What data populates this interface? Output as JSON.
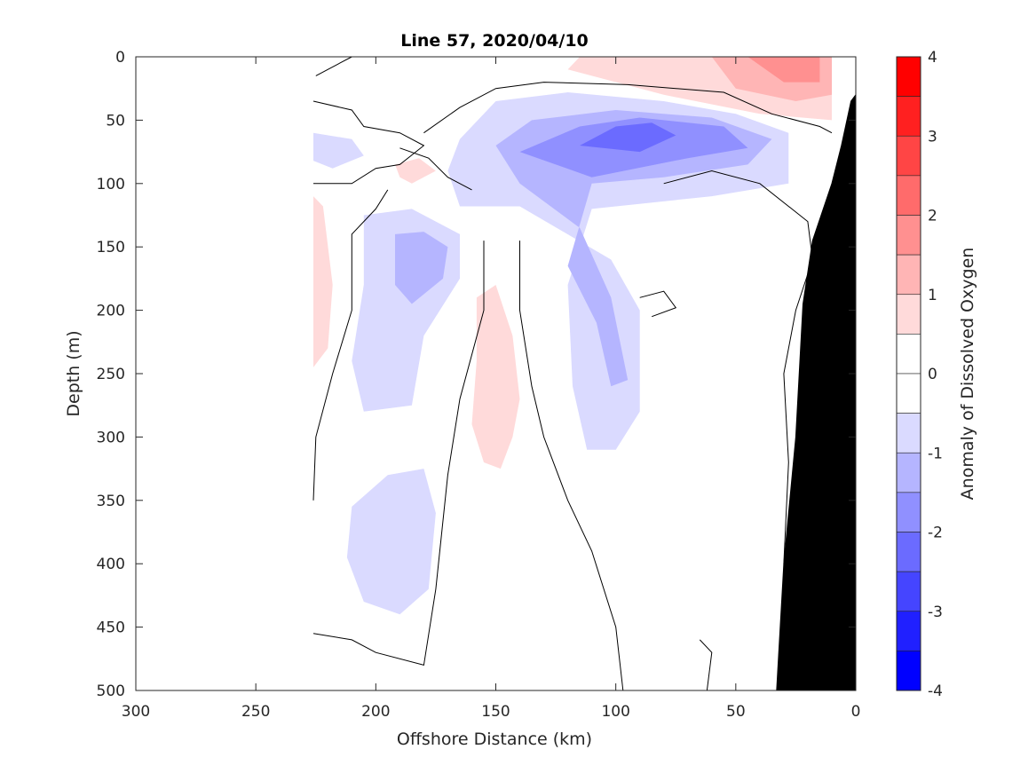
{
  "chart_data": {
    "type": "heatmap",
    "title": "Line 57, 2020/04/10",
    "xlabel": "Offshore Distance (km)",
    "ylabel": "Depth (m)",
    "colorbar_label": "Anomaly of Dissolved Oxygen",
    "xlim": [
      300,
      0
    ],
    "ylim": [
      500,
      0
    ],
    "x_reversed": true,
    "y_reversed": true,
    "x_ticks": [
      300,
      250,
      200,
      150,
      100,
      50,
      0
    ],
    "y_ticks": [
      0,
      50,
      100,
      150,
      200,
      250,
      300,
      350,
      400,
      450,
      500
    ],
    "colorbar_ticks": [
      4,
      3,
      2,
      1,
      0,
      -1,
      -2,
      -3,
      -4
    ],
    "colorbar_range": [
      -4,
      4
    ],
    "colorbar_levels": [
      {
        "from": 3.5,
        "to": 4.0,
        "color": "#ff0000"
      },
      {
        "from": 3.0,
        "to": 3.5,
        "color": "#ff2020"
      },
      {
        "from": 2.5,
        "to": 3.0,
        "color": "#ff4545"
      },
      {
        "from": 2.0,
        "to": 2.5,
        "color": "#ff6b6b"
      },
      {
        "from": 1.5,
        "to": 2.0,
        "color": "#ff9090"
      },
      {
        "from": 1.0,
        "to": 1.5,
        "color": "#ffb5b5"
      },
      {
        "from": 0.5,
        "to": 1.0,
        "color": "#ffdada"
      },
      {
        "from": 0.0,
        "to": 0.5,
        "color": "#ffffff"
      },
      {
        "from": -0.5,
        "to": 0.0,
        "color": "#ffffff"
      },
      {
        "from": -1.0,
        "to": -0.5,
        "color": "#dadaff"
      },
      {
        "from": -1.5,
        "to": -1.0,
        "color": "#b5b5ff"
      },
      {
        "from": -2.0,
        "to": -1.5,
        "color": "#9090ff"
      },
      {
        "from": -2.5,
        "to": -2.0,
        "color": "#6b6bff"
      },
      {
        "from": -3.0,
        "to": -2.5,
        "color": "#4545ff"
      },
      {
        "from": -3.5,
        "to": -3.0,
        "color": "#2020ff"
      },
      {
        "from": -4.0,
        "to": -3.5,
        "color": "#0000ff"
      }
    ],
    "grid": false,
    "colorbar_position": "right",
    "data_coverage_x_max": 226,
    "regions": [
      {
        "name": "surface-positive-anomaly",
        "level": 1,
        "points": [
          [
            115,
            0
          ],
          [
            60,
            0
          ],
          [
            20,
            0
          ],
          [
            10,
            0
          ],
          [
            10,
            50
          ],
          [
            40,
            45
          ],
          [
            80,
            30
          ],
          [
            120,
            10
          ]
        ]
      },
      {
        "name": "surface-positive-anomaly-core",
        "level": 2,
        "points": [
          [
            60,
            0
          ],
          [
            15,
            0
          ],
          [
            10,
            0
          ],
          [
            10,
            30
          ],
          [
            25,
            35
          ],
          [
            50,
            25
          ]
        ]
      },
      {
        "name": "surface-positive-anomaly-max",
        "level": 3,
        "points": [
          [
            45,
            0
          ],
          [
            15,
            0
          ],
          [
            15,
            20
          ],
          [
            30,
            20
          ]
        ]
      },
      {
        "name": "subsurface-negative-anomaly",
        "level": -1,
        "points": [
          [
            165,
            65
          ],
          [
            150,
            35
          ],
          [
            120,
            28
          ],
          [
            80,
            35
          ],
          [
            50,
            45
          ],
          [
            28,
            60
          ],
          [
            28,
            100
          ],
          [
            60,
            110
          ],
          [
            110,
            120
          ],
          [
            120,
            180
          ],
          [
            118,
            260
          ],
          [
            112,
            310
          ],
          [
            100,
            310
          ],
          [
            90,
            280
          ],
          [
            90,
            200
          ],
          [
            102,
            160
          ],
          [
            140,
            118
          ],
          [
            165,
            118
          ],
          [
            170,
            90
          ]
        ]
      },
      {
        "name": "subsurface-negative-anomaly-core",
        "level": -2,
        "points": [
          [
            150,
            70
          ],
          [
            135,
            50
          ],
          [
            100,
            42
          ],
          [
            60,
            48
          ],
          [
            35,
            65
          ],
          [
            45,
            85
          ],
          [
            80,
            95
          ],
          [
            110,
            100
          ],
          [
            120,
            165
          ],
          [
            108,
            210
          ],
          [
            102,
            260
          ],
          [
            95,
            255
          ],
          [
            102,
            190
          ],
          [
            115,
            135
          ],
          [
            140,
            100
          ]
        ]
      },
      {
        "name": "subsurface-negative-anomaly-inner",
        "level": -3,
        "points": [
          [
            140,
            75
          ],
          [
            115,
            55
          ],
          [
            90,
            48
          ],
          [
            55,
            55
          ],
          [
            45,
            72
          ],
          [
            70,
            80
          ],
          [
            110,
            95
          ]
        ]
      },
      {
        "name": "subsurface-negative-anomaly-max",
        "level": -4,
        "points": [
          [
            115,
            70
          ],
          [
            100,
            55
          ],
          [
            85,
            52
          ],
          [
            75,
            62
          ],
          [
            90,
            75
          ]
        ]
      },
      {
        "name": "western-negative-pocket",
        "level": -1,
        "points": [
          [
            226,
            60
          ],
          [
            210,
            65
          ],
          [
            205,
            78
          ],
          [
            218,
            88
          ],
          [
            226,
            82
          ]
        ]
      },
      {
        "name": "mid-depth-negative-patch",
        "level": -1,
        "points": [
          [
            205,
            125
          ],
          [
            185,
            120
          ],
          [
            165,
            140
          ],
          [
            165,
            175
          ],
          [
            180,
            220
          ],
          [
            185,
            275
          ],
          [
            205,
            280
          ],
          [
            210,
            240
          ],
          [
            205,
            180
          ]
        ]
      },
      {
        "name": "mid-depth-negative-core",
        "level": -2,
        "points": [
          [
            192,
            140
          ],
          [
            180,
            138
          ],
          [
            170,
            150
          ],
          [
            172,
            175
          ],
          [
            185,
            195
          ],
          [
            192,
            180
          ]
        ]
      },
      {
        "name": "deep-negative-patch",
        "level": -1,
        "points": [
          [
            210,
            355
          ],
          [
            195,
            330
          ],
          [
            180,
            325
          ],
          [
            175,
            360
          ],
          [
            178,
            420
          ],
          [
            190,
            440
          ],
          [
            205,
            430
          ],
          [
            212,
            395
          ]
        ]
      },
      {
        "name": "western-positive-strip",
        "level": 1,
        "points": [
          [
            226,
            110
          ],
          [
            222,
            118
          ],
          [
            218,
            180
          ],
          [
            220,
            230
          ],
          [
            226,
            245
          ]
        ]
      },
      {
        "name": "upper-positive-pocket",
        "level": 1,
        "points": [
          [
            192,
            85
          ],
          [
            182,
            80
          ],
          [
            175,
            90
          ],
          [
            185,
            100
          ],
          [
            190,
            95
          ]
        ]
      },
      {
        "name": "mid-depth-positive-patch",
        "level": 1,
        "points": [
          [
            158,
            190
          ],
          [
            150,
            180
          ],
          [
            143,
            220
          ],
          [
            140,
            270
          ],
          [
            143,
            300
          ],
          [
            148,
            325
          ],
          [
            155,
            320
          ],
          [
            160,
            290
          ],
          [
            158,
            240
          ]
        ]
      }
    ],
    "contour_lines": [
      [
        [
          225,
          15
        ],
        [
          215,
          5
        ],
        [
          210,
          0
        ]
      ],
      [
        [
          226,
          35
        ],
        [
          210,
          42
        ],
        [
          205,
          55
        ],
        [
          190,
          60
        ],
        [
          180,
          70
        ],
        [
          190,
          85
        ],
        [
          200,
          88
        ],
        [
          210,
          100
        ],
        [
          226,
          100
        ]
      ],
      [
        [
          180,
          60
        ],
        [
          165,
          40
        ],
        [
          150,
          25
        ],
        [
          130,
          20
        ],
        [
          95,
          22
        ],
        [
          55,
          28
        ],
        [
          35,
          45
        ],
        [
          15,
          55
        ],
        [
          10,
          60
        ]
      ],
      [
        [
          160,
          105
        ],
        [
          170,
          95
        ],
        [
          178,
          80
        ],
        [
          190,
          72
        ]
      ],
      [
        [
          155,
          145
        ],
        [
          155,
          200
        ],
        [
          165,
          270
        ],
        [
          170,
          330
        ],
        [
          175,
          420
        ],
        [
          180,
          480
        ],
        [
          200,
          470
        ],
        [
          210,
          460
        ],
        [
          226,
          455
        ]
      ],
      [
        [
          226,
          350
        ],
        [
          225,
          300
        ],
        [
          218,
          250
        ],
        [
          210,
          200
        ],
        [
          210,
          140
        ],
        [
          200,
          120
        ],
        [
          195,
          105
        ]
      ],
      [
        [
          140,
          145
        ],
        [
          140,
          200
        ],
        [
          135,
          260
        ],
        [
          130,
          300
        ],
        [
          120,
          350
        ],
        [
          110,
          390
        ],
        [
          100,
          450
        ],
        [
          97,
          500
        ]
      ],
      [
        [
          90,
          190
        ],
        [
          80,
          185
        ],
        [
          75,
          198
        ],
        [
          85,
          205
        ]
      ],
      [
        [
          80,
          100
        ],
        [
          60,
          90
        ],
        [
          40,
          100
        ],
        [
          20,
          130
        ],
        [
          18,
          160
        ],
        [
          25,
          200
        ],
        [
          30,
          250
        ],
        [
          28,
          320
        ],
        [
          30,
          400
        ],
        [
          20,
          450
        ],
        [
          15,
          500
        ]
      ],
      [
        [
          65,
          460
        ],
        [
          60,
          470
        ],
        [
          62,
          500
        ]
      ]
    ],
    "bottom_topography": [
      [
        33,
        500
      ],
      [
        30,
        400
      ],
      [
        25,
        300
      ],
      [
        22,
        195
      ],
      [
        18,
        145
      ],
      [
        10,
        100
      ],
      [
        6,
        70
      ],
      [
        2,
        35
      ],
      [
        0,
        30
      ],
      [
        0,
        500
      ]
    ]
  }
}
